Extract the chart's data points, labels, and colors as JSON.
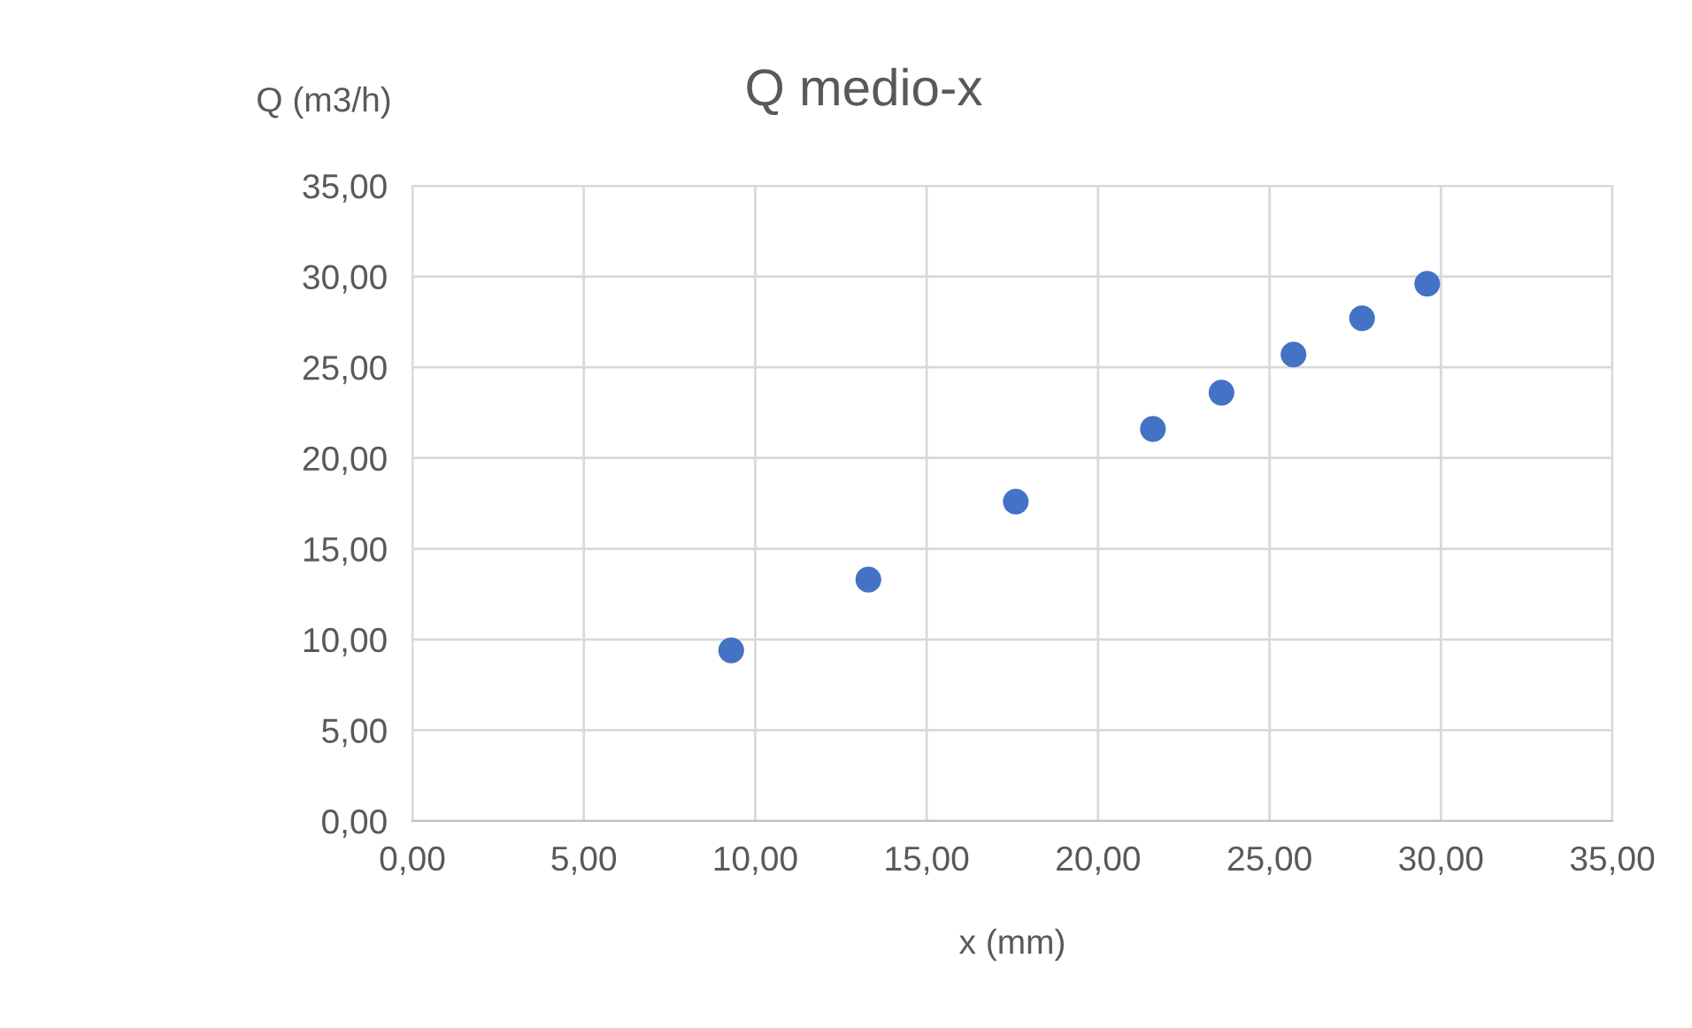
{
  "chart_data": {
    "type": "scatter",
    "title": "Q medio-x",
    "xlabel": "x (mm)",
    "ylabel": "Q (m3/h)",
    "x": [
      9.3,
      13.3,
      17.6,
      21.6,
      23.6,
      25.7,
      27.7,
      29.6
    ],
    "series": [
      {
        "color": "#4472c4",
        "values": [
          9.4,
          13.3,
          17.6,
          21.6,
          23.6,
          25.7,
          27.7,
          29.6
        ]
      }
    ],
    "xlim": [
      0,
      35
    ],
    "ylim": [
      0,
      35
    ],
    "xticks": [
      {
        "value": 0,
        "label": "0,00"
      },
      {
        "value": 5,
        "label": "5,00"
      },
      {
        "value": 10,
        "label": "10,00"
      },
      {
        "value": 15,
        "label": "15,00"
      },
      {
        "value": 20,
        "label": "20,00"
      },
      {
        "value": 25,
        "label": "25,00"
      },
      {
        "value": 30,
        "label": "30,00"
      },
      {
        "value": 35,
        "label": "35,00"
      }
    ],
    "yticks": [
      {
        "value": 0,
        "label": "0,00"
      },
      {
        "value": 5,
        "label": "5,00"
      },
      {
        "value": 10,
        "label": "10,00"
      },
      {
        "value": 15,
        "label": "15,00"
      },
      {
        "value": 20,
        "label": "20,00"
      },
      {
        "value": 25,
        "label": "25,00"
      },
      {
        "value": 30,
        "label": "30,00"
      },
      {
        "value": 35,
        "label": "35,00"
      }
    ],
    "grid": true,
    "marker": "circle"
  }
}
